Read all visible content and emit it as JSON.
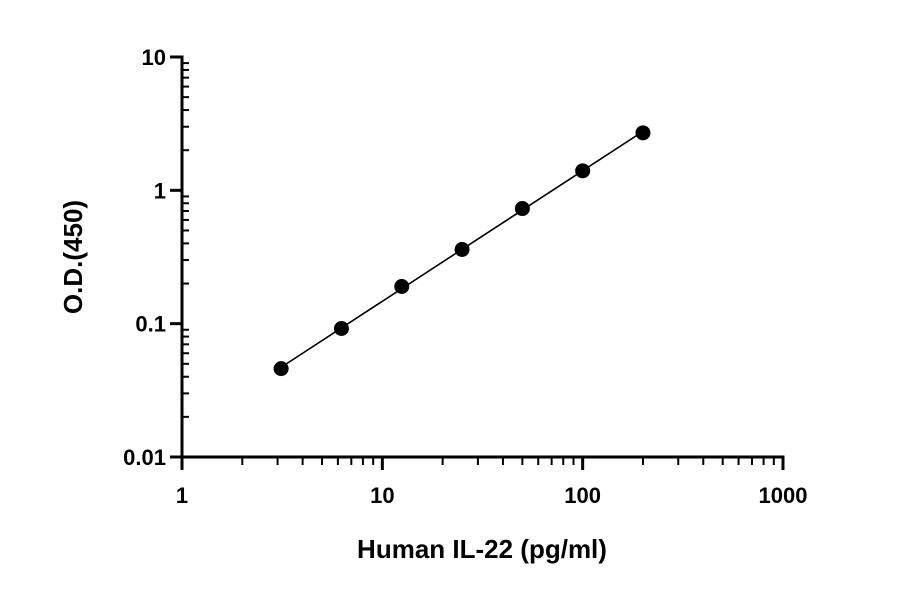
{
  "chart_data": {
    "type": "scatter",
    "xlabel": "Human IL-22 (pg/ml)",
    "ylabel": "O.D.(450)",
    "x_scale": "log",
    "y_scale": "log",
    "xlim": [
      1,
      1000
    ],
    "ylim": [
      0.01,
      10
    ],
    "x_ticks": [
      "1",
      "10",
      "100",
      "1000"
    ],
    "y_ticks": [
      "0.01",
      "0.1",
      "1",
      "10"
    ],
    "grid": false,
    "legend": "none",
    "series": [
      {
        "x": [
          3.125,
          6.25,
          12.5,
          25,
          50,
          100,
          200
        ],
        "y": [
          0.046,
          0.092,
          0.19,
          0.36,
          0.73,
          1.4,
          2.7
        ],
        "fit_line": true,
        "color": "#000000"
      }
    ]
  }
}
